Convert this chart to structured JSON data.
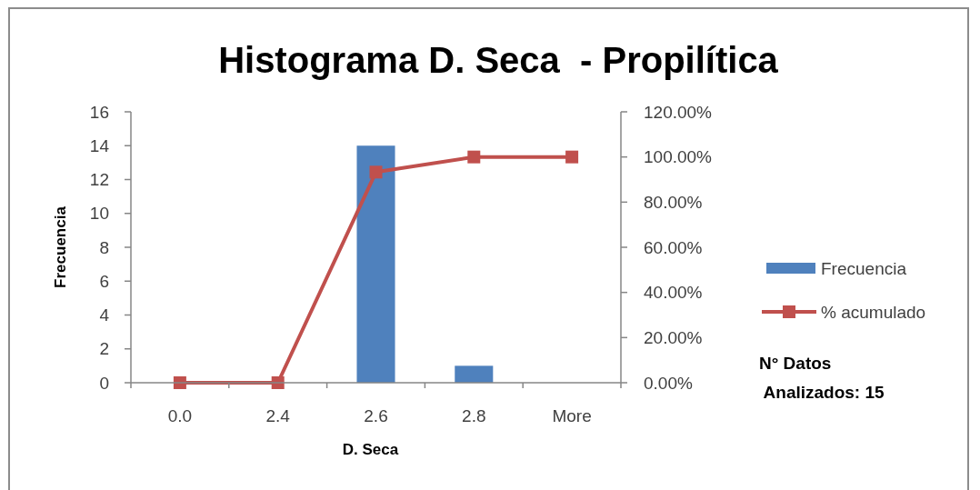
{
  "chart_data": {
    "type": "bar",
    "title": "Histograma D. Seca  - Propilítica",
    "xlabel": "D. Seca",
    "ylabel": "Frecuencia",
    "categories": [
      "0.0",
      "2.4",
      "2.6",
      "2.8",
      "More"
    ],
    "series": [
      {
        "name": "Frecuencia",
        "type": "bar",
        "color": "#4f81bd",
        "values": [
          0,
          0,
          14,
          1,
          0
        ]
      },
      {
        "name": "% acumulado",
        "type": "line",
        "axis": "y2",
        "color": "#c0504d",
        "values": [
          0,
          0,
          93.3,
          100,
          100
        ]
      }
    ],
    "ylim": [
      0,
      16
    ],
    "yticks": [
      0,
      2,
      4,
      6,
      8,
      10,
      12,
      14,
      16
    ],
    "y2lim": [
      0,
      120
    ],
    "y2ticks": [
      {
        "value": 0,
        "label": "0.00%"
      },
      {
        "value": 20,
        "label": "20.00%"
      },
      {
        "value": 40,
        "label": "40.00%"
      },
      {
        "value": 60,
        "label": "60.00%"
      },
      {
        "value": 80,
        "label": "80.00%"
      },
      {
        "value": 100,
        "label": "100.00%"
      },
      {
        "value": 120,
        "label": "120.00%"
      }
    ],
    "marker": "square",
    "line_style": "solid",
    "grid": false,
    "legend": "right",
    "annotations": [
      "N° Datos\n Analizados: 15"
    ]
  }
}
